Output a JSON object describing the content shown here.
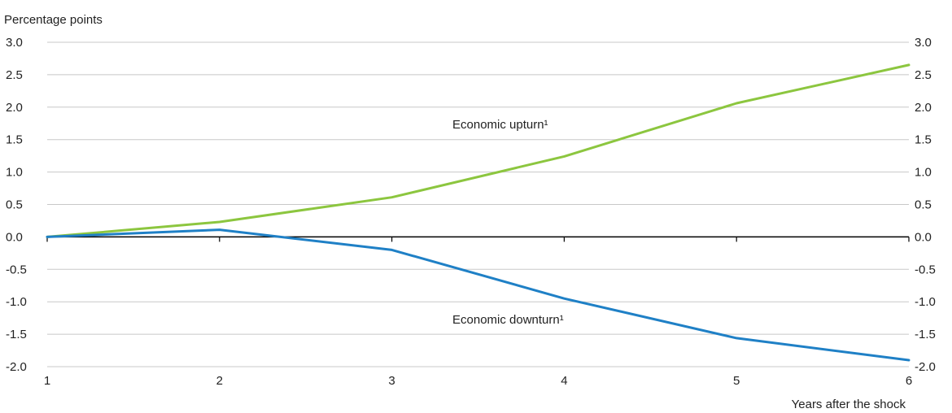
{
  "chart_data": {
    "type": "line",
    "y_axis_label": "Percentage points",
    "x_axis_label": "Years after the shock",
    "x": [
      1,
      2,
      3,
      4,
      5,
      6
    ],
    "ylim": [
      -2.0,
      3.0
    ],
    "yticks": [
      "3.0",
      "2.5",
      "2.0",
      "1.5",
      "1.0",
      "0.5",
      "0.0",
      "-0.5",
      "-1.0",
      "-1.5",
      "-2.0"
    ],
    "ytick_values": [
      3.0,
      2.5,
      2.0,
      1.5,
      1.0,
      0.5,
      0.0,
      -0.5,
      -1.0,
      -1.5,
      -2.0
    ],
    "xticks": [
      "1",
      "2",
      "3",
      "4",
      "5",
      "6"
    ],
    "grid": true,
    "series": [
      {
        "name": "Economic upturn¹",
        "color": "#8cc63f",
        "values": [
          0.0,
          0.23,
          0.61,
          1.24,
          2.06,
          2.65
        ]
      },
      {
        "name": "Economic downturn¹",
        "color": "#1f80c6",
        "values": [
          0.0,
          0.11,
          -0.2,
          -0.95,
          -1.56,
          -1.9
        ]
      }
    ]
  }
}
